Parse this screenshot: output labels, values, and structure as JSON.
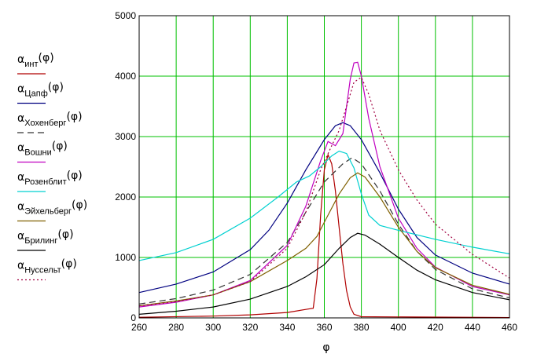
{
  "chart_data": {
    "type": "line",
    "xlabel": "φ",
    "ylabel": "",
    "xlim": [
      260,
      460
    ],
    "ylim": [
      0,
      5000
    ],
    "x_ticks": [
      260,
      280,
      300,
      320,
      340,
      360,
      380,
      400,
      420,
      440,
      460
    ],
    "y_ticks": [
      0,
      1000,
      2000,
      3000,
      4000,
      5000
    ],
    "grid": true,
    "grid_color": "#00c000",
    "legend_position": "left",
    "series": [
      {
        "name": "α_инт(φ)",
        "symbol": "α",
        "subscript": "инт",
        "arg": "(φ)",
        "color": "#b00000",
        "dash": "",
        "points": [
          [
            260,
            10
          ],
          [
            300,
            30
          ],
          [
            320,
            50
          ],
          [
            340,
            90
          ],
          [
            350,
            140
          ],
          [
            354,
            160
          ],
          [
            356,
            650
          ],
          [
            358,
            1700
          ],
          [
            360,
            2450
          ],
          [
            362,
            2700
          ],
          [
            364,
            2550
          ],
          [
            366,
            2100
          ],
          [
            368,
            1500
          ],
          [
            370,
            900
          ],
          [
            372,
            450
          ],
          [
            374,
            180
          ],
          [
            376,
            60
          ],
          [
            380,
            20
          ],
          [
            460,
            5
          ]
        ]
      },
      {
        "name": "α_Цапф(φ)",
        "symbol": "α",
        "subscript": "Цапф",
        "arg": "(φ)",
        "color": "#000080",
        "dash": "",
        "points": [
          [
            260,
            420
          ],
          [
            280,
            560
          ],
          [
            300,
            760
          ],
          [
            320,
            1130
          ],
          [
            330,
            1450
          ],
          [
            340,
            1900
          ],
          [
            350,
            2450
          ],
          [
            360,
            2950
          ],
          [
            366,
            3180
          ],
          [
            370,
            3230
          ],
          [
            374,
            3180
          ],
          [
            380,
            2950
          ],
          [
            390,
            2400
          ],
          [
            400,
            1800
          ],
          [
            410,
            1330
          ],
          [
            420,
            1040
          ],
          [
            440,
            740
          ],
          [
            460,
            560
          ]
        ]
      },
      {
        "name": "α_Хохенберг(φ)",
        "symbol": "α",
        "subscript": "Хохенберг",
        "arg": "(φ)",
        "color": "#333333",
        "dash": "8,5",
        "points": [
          [
            260,
            230
          ],
          [
            280,
            320
          ],
          [
            300,
            460
          ],
          [
            320,
            720
          ],
          [
            340,
            1250
          ],
          [
            350,
            1750
          ],
          [
            360,
            2250
          ],
          [
            370,
            2550
          ],
          [
            375,
            2650
          ],
          [
            380,
            2550
          ],
          [
            390,
            2100
          ],
          [
            400,
            1550
          ],
          [
            410,
            1100
          ],
          [
            420,
            800
          ],
          [
            440,
            480
          ],
          [
            460,
            330
          ]
        ]
      },
      {
        "name": "α_Вошни(φ)",
        "symbol": "α",
        "subscript": "Вошни",
        "arg": "(φ)",
        "color": "#c000c0",
        "dash": "",
        "points": [
          [
            260,
            180
          ],
          [
            280,
            260
          ],
          [
            300,
            380
          ],
          [
            320,
            620
          ],
          [
            340,
            1200
          ],
          [
            350,
            1850
          ],
          [
            358,
            2600
          ],
          [
            362,
            2920
          ],
          [
            366,
            2850
          ],
          [
            370,
            3050
          ],
          [
            372,
            3500
          ],
          [
            374,
            3950
          ],
          [
            376,
            4220
          ],
          [
            378,
            4230
          ],
          [
            380,
            4000
          ],
          [
            384,
            3300
          ],
          [
            390,
            2500
          ],
          [
            400,
            1650
          ],
          [
            410,
            1150
          ],
          [
            420,
            840
          ],
          [
            440,
            520
          ],
          [
            460,
            380
          ]
        ]
      },
      {
        "name": "α_Розенблит(φ)",
        "symbol": "α",
        "subscript": "Розенблит",
        "arg": "(φ)",
        "color": "#00d0d0",
        "dash": "",
        "points": [
          [
            260,
            950
          ],
          [
            280,
            1080
          ],
          [
            300,
            1300
          ],
          [
            320,
            1650
          ],
          [
            335,
            2000
          ],
          [
            345,
            2250
          ],
          [
            352,
            2350
          ],
          [
            358,
            2500
          ],
          [
            364,
            2680
          ],
          [
            368,
            2760
          ],
          [
            372,
            2720
          ],
          [
            376,
            2480
          ],
          [
            380,
            2050
          ],
          [
            384,
            1700
          ],
          [
            390,
            1530
          ],
          [
            400,
            1450
          ],
          [
            420,
            1300
          ],
          [
            440,
            1170
          ],
          [
            460,
            1060
          ]
        ]
      },
      {
        "name": "α_Эйхельберг(φ)",
        "symbol": "α",
        "subscript": "Эйхельберг",
        "arg": "(φ)",
        "color": "#806000",
        "dash": "",
        "points": [
          [
            260,
            200
          ],
          [
            280,
            280
          ],
          [
            300,
            380
          ],
          [
            320,
            600
          ],
          [
            340,
            950
          ],
          [
            350,
            1150
          ],
          [
            356,
            1350
          ],
          [
            362,
            1700
          ],
          [
            368,
            2050
          ],
          [
            374,
            2320
          ],
          [
            378,
            2400
          ],
          [
            382,
            2330
          ],
          [
            390,
            2000
          ],
          [
            400,
            1500
          ],
          [
            410,
            1100
          ],
          [
            420,
            830
          ],
          [
            440,
            540
          ],
          [
            460,
            390
          ]
        ]
      },
      {
        "name": "α_Бриллинг(φ)",
        "symbol": "α",
        "subscript": "Брилинг",
        "arg": "(φ)",
        "color": "#000000",
        "dash": "",
        "points": [
          [
            260,
            60
          ],
          [
            280,
            110
          ],
          [
            300,
            180
          ],
          [
            320,
            310
          ],
          [
            340,
            520
          ],
          [
            350,
            680
          ],
          [
            360,
            880
          ],
          [
            368,
            1150
          ],
          [
            374,
            1330
          ],
          [
            378,
            1400
          ],
          [
            382,
            1370
          ],
          [
            390,
            1220
          ],
          [
            400,
            1000
          ],
          [
            410,
            790
          ],
          [
            420,
            630
          ],
          [
            440,
            420
          ],
          [
            460,
            300
          ]
        ]
      },
      {
        "name": "α_Нуссельт(φ)",
        "symbol": "α",
        "subscript": "Нуссельт",
        "arg": "(φ)",
        "color": "#a00040",
        "dash": "2,3",
        "points": [
          [
            260,
            200
          ],
          [
            280,
            270
          ],
          [
            300,
            380
          ],
          [
            320,
            600
          ],
          [
            340,
            1150
          ],
          [
            350,
            1750
          ],
          [
            358,
            2450
          ],
          [
            364,
            2850
          ],
          [
            368,
            3100
          ],
          [
            372,
            3500
          ],
          [
            376,
            3900
          ],
          [
            380,
            3980
          ],
          [
            384,
            3700
          ],
          [
            390,
            3100
          ],
          [
            400,
            2450
          ],
          [
            410,
            1950
          ],
          [
            420,
            1550
          ],
          [
            440,
            1050
          ],
          [
            460,
            660
          ]
        ]
      }
    ]
  }
}
